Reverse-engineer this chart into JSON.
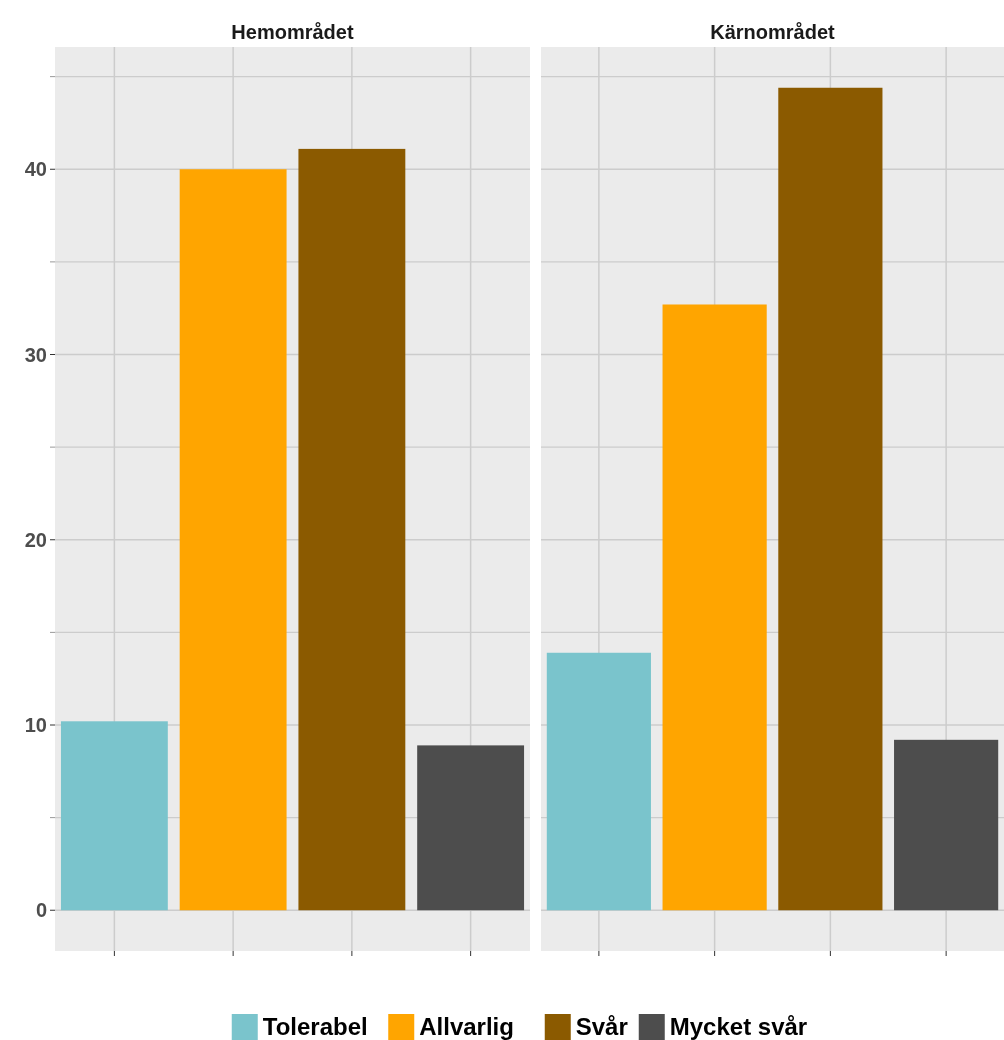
{
  "chart_data": {
    "type": "bar",
    "categories": [
      "Hemområdet",
      "Kärnområdet"
    ],
    "series": [
      {
        "name": "Tolerabel",
        "color": "#7ac4cc",
        "values": [
          10.2,
          13.9
        ]
      },
      {
        "name": "Allvarlig",
        "color": "#ffa500",
        "values": [
          40.0,
          32.7
        ]
      },
      {
        "name": "Svår",
        "color": "#8b5a00",
        "values": [
          41.1,
          44.4
        ]
      },
      {
        "name": "Mycket svår",
        "color": "#4d4d4d",
        "values": [
          8.9,
          9.2
        ]
      }
    ],
    "ylim": [
      -2.2,
      46.6
    ],
    "yticks": [
      0,
      {
        "value": 5,
        "label": null
      },
      10,
      {
        "value": 15,
        "label": null
      },
      20,
      {
        "value": 25,
        "label": null
      },
      30,
      {
        "value": 35,
        "label": null
      },
      40,
      {
        "value": 45,
        "label": null
      }
    ],
    "grid": true,
    "legend": "bottom"
  }
}
